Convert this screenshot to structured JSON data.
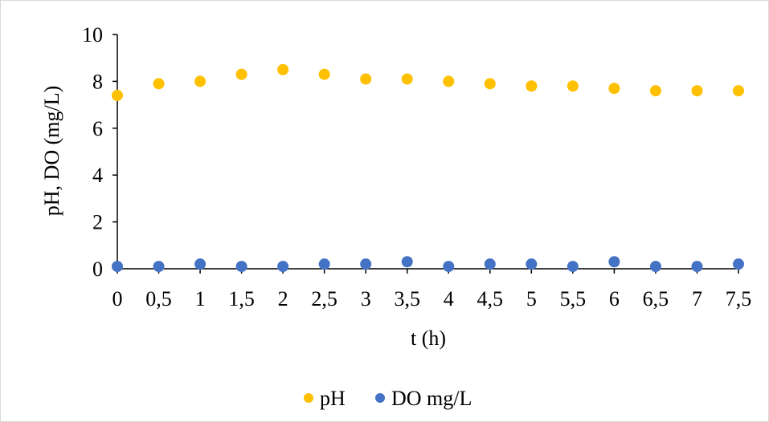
{
  "chart_data": {
    "type": "scatter",
    "x_categories": [
      "0",
      "0,5",
      "1",
      "1,5",
      "2",
      "2,5",
      "3",
      "3,5",
      "4",
      "4,5",
      "5",
      "5,5",
      "6",
      "6,5",
      "7",
      "7,5"
    ],
    "series": [
      {
        "name": "pH",
        "color": "#FFC000",
        "values": [
          7.4,
          7.9,
          8.0,
          8.3,
          8.5,
          8.3,
          8.1,
          8.1,
          8.0,
          7.9,
          7.8,
          7.8,
          7.7,
          7.6,
          7.6,
          7.6
        ]
      },
      {
        "name": "DO mg/L",
        "color": "#4472C4",
        "values": [
          0.1,
          0.1,
          0.2,
          0.1,
          0.1,
          0.2,
          0.2,
          0.3,
          0.1,
          0.2,
          0.2,
          0.1,
          0.3,
          0.1,
          0.1,
          0.2
        ]
      }
    ],
    "y_ticks": [
      "0",
      "2",
      "4",
      "6",
      "8",
      "10"
    ],
    "ylim": [
      0,
      10
    ],
    "xlabel": "t (h)",
    "ylabel": "pH, DO (mg/L)",
    "legend_position": "bottom",
    "grid": false
  }
}
